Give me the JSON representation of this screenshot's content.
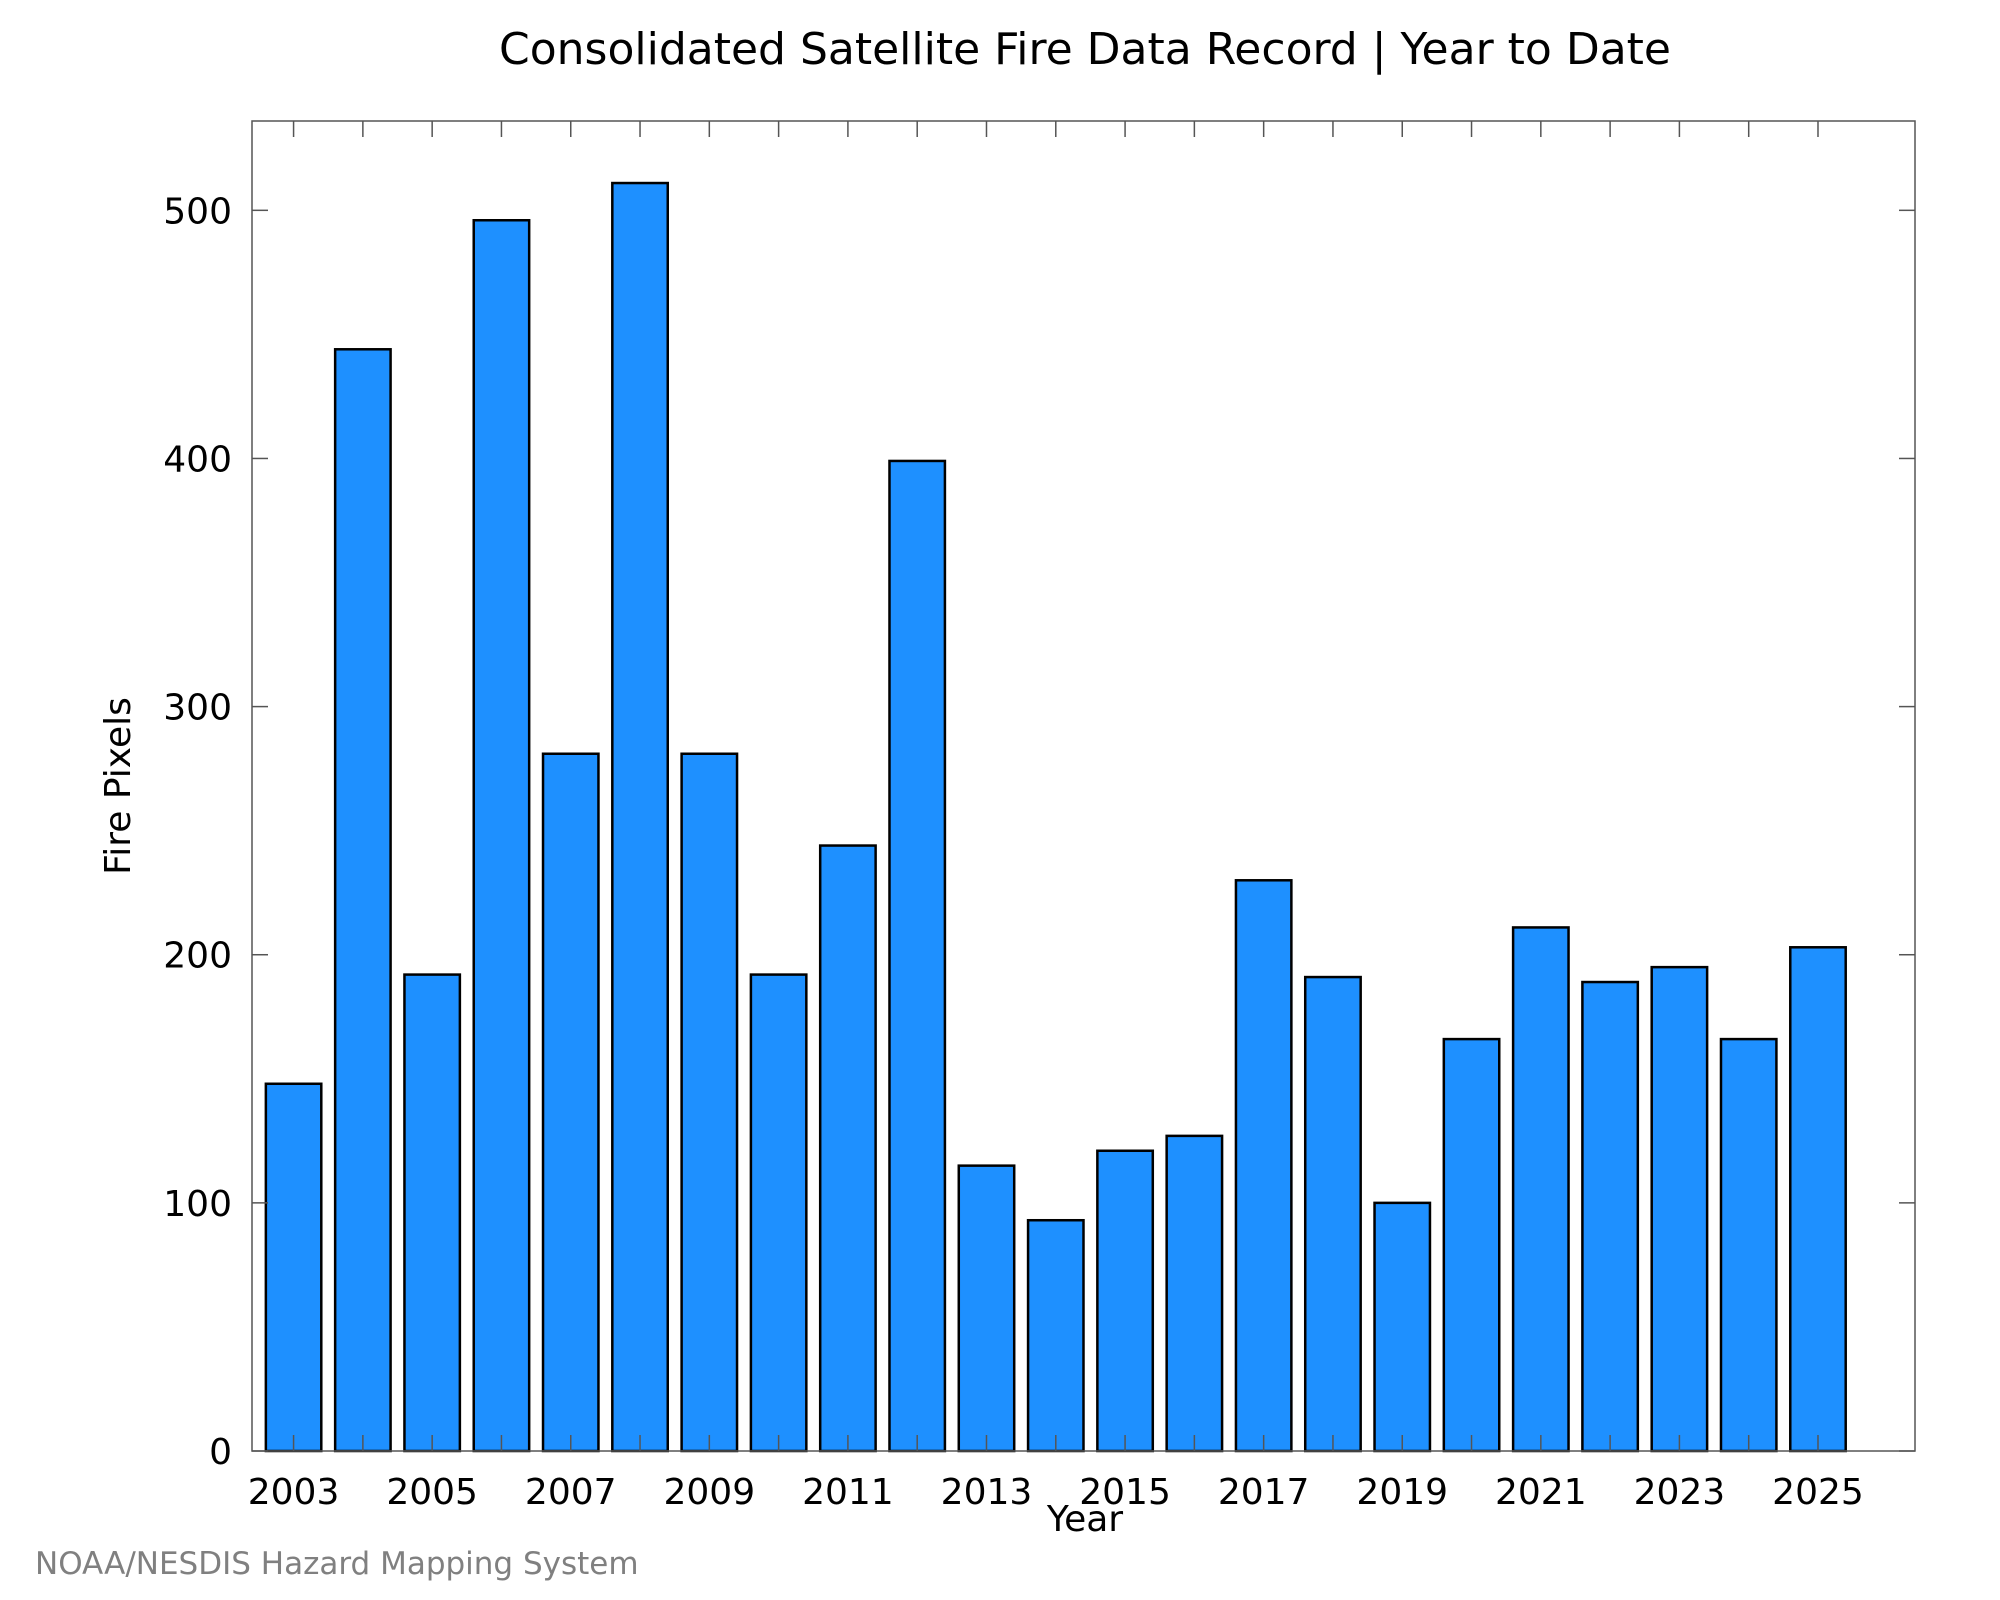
{
  "chart_data": {
    "type": "bar",
    "title": "Consolidated Satellite Fire Data Record | Year to Date",
    "xlabel": "Year",
    "ylabel": "Fire Pixels",
    "credit": "NOAA/NESDIS Hazard Mapping System",
    "categories": [
      2003,
      2004,
      2005,
      2006,
      2007,
      2008,
      2009,
      2010,
      2011,
      2012,
      2013,
      2014,
      2015,
      2016,
      2017,
      2018,
      2019,
      2020,
      2021,
      2022,
      2023,
      2024,
      2025
    ],
    "values": [
      148,
      444,
      192,
      496,
      281,
      511,
      281,
      192,
      244,
      399,
      115,
      93,
      121,
      127,
      230,
      191,
      100,
      166,
      211,
      189,
      195,
      166,
      203
    ],
    "xlim": [
      2002.4,
      2026.4
    ],
    "ylim": [
      0,
      536
    ],
    "xticks_major": [
      2003,
      2005,
      2007,
      2009,
      2011,
      2013,
      2015,
      2017,
      2019,
      2021,
      2023,
      2025
    ],
    "xticks_minor": [
      2004,
      2006,
      2008,
      2010,
      2012,
      2014,
      2016,
      2018,
      2020,
      2022,
      2024
    ],
    "yticks": [
      0,
      100,
      200,
      300,
      400,
      500
    ],
    "bar_width_years": 0.8,
    "bar_color": "#1e90ff",
    "edge_color": "#000000",
    "grid": false,
    "legend": "none"
  }
}
